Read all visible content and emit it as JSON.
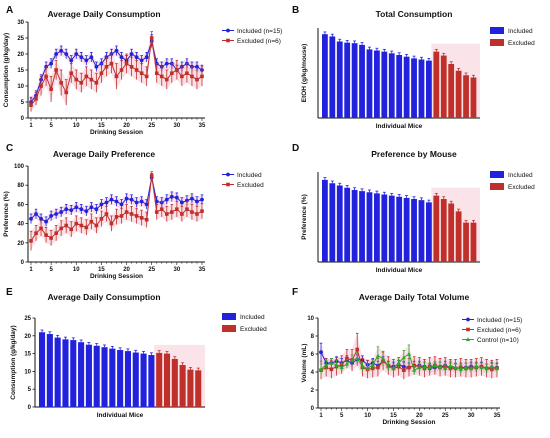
{
  "colors": {
    "included": "#2222dd",
    "excluded": "#c0302b",
    "control": "#2aa82a",
    "band": "#f6c9d6"
  },
  "chart_data": [
    {
      "panel": "A",
      "type": "line",
      "title": "Average Daily Consumption",
      "xlabel": "Drinking Session",
      "ylabel": "Consumption (g/kg/day)",
      "xlim": [
        1,
        35
      ],
      "ylim": [
        0,
        30
      ],
      "xticks": [
        1,
        5,
        10,
        15,
        20,
        25,
        30,
        35
      ],
      "yticks": [
        0,
        5,
        10,
        15,
        20,
        25,
        30
      ],
      "legend_position": "top-right",
      "series": [
        {
          "name": "Included (n=15)",
          "color": "included",
          "marker": "circle",
          "values": [
            5,
            7,
            12,
            16,
            17,
            20,
            21,
            20,
            18,
            20,
            19,
            18,
            19,
            16,
            17,
            19,
            20,
            21,
            19,
            18,
            20,
            19,
            18,
            19,
            24,
            17,
            16,
            17,
            17,
            15,
            16,
            17,
            16,
            16,
            15
          ],
          "err": [
            1.5,
            1.5,
            1.5,
            1.5,
            1.5,
            1.5,
            1.5,
            1.5,
            1.5,
            1.5,
            1.5,
            1.5,
            1.5,
            1.5,
            1.5,
            1.5,
            1.5,
            1.5,
            1.5,
            1.5,
            1.5,
            1.5,
            1.5,
            1.5,
            2,
            1.5,
            1.5,
            1.5,
            1.5,
            1.5,
            1.5,
            1.5,
            1.5,
            1.5,
            1.5
          ]
        },
        {
          "name": "Excluded (n=6)",
          "color": "excluded",
          "marker": "square",
          "values": [
            4,
            6,
            10,
            13,
            9,
            15,
            11,
            8,
            14,
            12,
            11,
            13,
            12,
            11,
            14,
            16,
            17,
            13,
            15,
            17,
            16,
            15,
            14,
            13,
            25,
            14,
            13,
            12,
            14,
            15,
            13,
            14,
            13,
            12,
            13
          ],
          "err": [
            2,
            2,
            3,
            3,
            4,
            3,
            4,
            4,
            3,
            3,
            3,
            3,
            3,
            3,
            3,
            3,
            3,
            4,
            3,
            3,
            3,
            3,
            3,
            3,
            2,
            3,
            3,
            3,
            3,
            3,
            3,
            3,
            3,
            3,
            3
          ]
        }
      ]
    },
    {
      "panel": "B",
      "type": "bar",
      "title": "Total Consumption",
      "xlabel": "Individual Mice",
      "ylabel": "EtOH (g/kg/mouse)",
      "ylim": [
        0,
        800
      ],
      "legend_position": "top-right",
      "series": [
        {
          "name": "Included",
          "color": "included",
          "values": [
            745,
            725,
            680,
            670,
            665,
            650,
            610,
            600,
            590,
            575,
            560,
            545,
            530,
            520,
            510
          ]
        },
        {
          "name": "Excluded",
          "color": "excluded",
          "values": [
            590,
            555,
            480,
            420,
            380,
            360
          ]
        }
      ]
    },
    {
      "panel": "C",
      "type": "line",
      "title": "Average Daily Preference",
      "xlabel": "Drinking Session",
      "ylabel": "Preference (%)",
      "xlim": [
        1,
        35
      ],
      "ylim": [
        0,
        100
      ],
      "xticks": [
        1,
        5,
        10,
        15,
        20,
        25,
        30,
        35
      ],
      "yticks": [
        0,
        20,
        40,
        60,
        80,
        100
      ],
      "legend_position": "top-right",
      "series": [
        {
          "name": "Included",
          "color": "included",
          "marker": "circle",
          "values": [
            45,
            50,
            45,
            42,
            48,
            50,
            52,
            55,
            54,
            57,
            55,
            53,
            57,
            55,
            60,
            62,
            65,
            63,
            60,
            66,
            65,
            62,
            63,
            60,
            88,
            63,
            62,
            65,
            68,
            67,
            62,
            64,
            66,
            63,
            65
          ],
          "err": [
            5,
            5,
            5,
            5,
            5,
            5,
            5,
            5,
            5,
            5,
            5,
            5,
            5,
            5,
            5,
            5,
            5,
            5,
            5,
            5,
            5,
            5,
            5,
            5,
            4,
            5,
            5,
            5,
            5,
            5,
            5,
            5,
            5,
            5,
            5
          ]
        },
        {
          "name": "Excluded",
          "color": "excluded",
          "marker": "square",
          "values": [
            22,
            30,
            35,
            28,
            25,
            30,
            35,
            38,
            34,
            40,
            38,
            36,
            42,
            38,
            45,
            50,
            40,
            47,
            48,
            52,
            50,
            48,
            46,
            44,
            90,
            52,
            55,
            50,
            52,
            55,
            50,
            55,
            52,
            50,
            53
          ],
          "err": [
            10,
            8,
            8,
            8,
            8,
            8,
            8,
            8,
            8,
            8,
            8,
            8,
            8,
            8,
            8,
            8,
            8,
            8,
            8,
            8,
            8,
            8,
            8,
            8,
            4,
            8,
            8,
            8,
            8,
            8,
            8,
            8,
            8,
            8,
            8
          ]
        }
      ]
    },
    {
      "panel": "D",
      "type": "bar",
      "title": "Preference by Mouse",
      "xlabel": "Individual Mice",
      "ylabel": "Preference  (%)",
      "ylim": [
        0,
        80
      ],
      "legend_position": "top-right",
      "series": [
        {
          "name": "Included",
          "color": "included",
          "values": [
            73,
            70,
            68,
            66,
            64,
            63,
            62,
            61,
            60,
            59,
            58,
            57,
            56,
            55,
            53
          ]
        },
        {
          "name": "Excluded",
          "color": "excluded",
          "values": [
            59,
            56,
            52,
            45,
            35,
            35
          ]
        }
      ]
    },
    {
      "panel": "E",
      "type": "bar",
      "title": "Average Daily Consumption",
      "xlabel": "Individual Mice",
      "ylabel": "Consumption (g/kg/day)",
      "ylim": [
        0,
        25
      ],
      "yticks": [
        0,
        5,
        10,
        15,
        20,
        25
      ],
      "legend_position": "top-right",
      "series": [
        {
          "name": "Included",
          "color": "included",
          "values": [
            21,
            20.5,
            19.5,
            19,
            18.8,
            18.2,
            17.5,
            17.2,
            16.8,
            16.4,
            16,
            15.7,
            15.3,
            15,
            14.6
          ]
        },
        {
          "name": "Excluded",
          "color": "excluded",
          "values": [
            15.2,
            15,
            13.5,
            11.8,
            10.5,
            10.3
          ]
        }
      ]
    },
    {
      "panel": "F",
      "type": "line",
      "title": "Average Daily Total Volume",
      "xlabel": "Drinking Session",
      "ylabel": "Volume (mL)",
      "xlim": [
        1,
        35
      ],
      "ylim": [
        0,
        10
      ],
      "xticks": [
        1,
        5,
        10,
        15,
        20,
        25,
        30,
        35
      ],
      "yticks": [
        0,
        2,
        4,
        6,
        8,
        10
      ],
      "legend_position": "top-right",
      "series": [
        {
          "name": "Included (n=15)",
          "color": "included",
          "marker": "circle",
          "values": [
            6.2,
            5,
            5,
            5.2,
            5,
            5.3,
            5,
            5.4,
            5.3,
            4.8,
            5,
            4.7,
            5.2,
            4.7,
            4.6,
            4.8,
            4.6,
            4.5,
            4.7,
            4.7,
            4.6,
            4.4,
            4.5,
            4.6,
            4.7,
            4.5,
            4.4,
            4.5,
            4.5,
            4.6,
            4.5,
            4.6,
            4.4,
            4.5,
            4.5
          ],
          "err": [
            1,
            0.5,
            0.5,
            0.5,
            0.5,
            0.5,
            0.5,
            0.5,
            0.5,
            0.5,
            0.5,
            0.5,
            0.5,
            0.5,
            0.5,
            0.5,
            0.5,
            0.5,
            0.5,
            0.5,
            0.5,
            0.5,
            0.5,
            0.5,
            0.5,
            0.5,
            0.5,
            0.5,
            0.5,
            0.5,
            0.5,
            0.5,
            0.5,
            0.5,
            0.5
          ]
        },
        {
          "name": "Excluded (n=6)",
          "color": "excluded",
          "marker": "square",
          "values": [
            4.2,
            4.5,
            4.3,
            4.6,
            4.8,
            5.5,
            5.3,
            6.5,
            4.5,
            4.3,
            4.4,
            4.5,
            5.2,
            4.7,
            4.4,
            4.6,
            4.2,
            4.5,
            4.7,
            4.6,
            4.4,
            4.6,
            4.7,
            4.5,
            4.6,
            4.4,
            4.4,
            4.5,
            4.4,
            4.4,
            4.5,
            4.6,
            4.4,
            4.3,
            4.4
          ],
          "err": [
            1,
            1,
            1,
            1,
            1,
            1,
            1.2,
            1.8,
            1,
            1,
            1,
            1,
            1,
            1,
            1,
            1,
            1,
            1,
            1,
            1,
            1,
            1,
            1,
            1,
            1,
            1,
            1,
            1,
            1,
            1,
            1,
            1,
            1,
            1,
            1
          ]
        },
        {
          "name": "Control (n=10)",
          "color": "control",
          "marker": "triangle",
          "values": [
            4.3,
            4.8,
            5,
            4.8,
            4.5,
            4.9,
            5.3,
            5.5,
            4.6,
            4.4,
            4.8,
            5.8,
            5.5,
            4.6,
            4.4,
            5,
            5.6,
            6,
            4.2,
            4.5,
            4.6,
            4.5,
            4.7,
            4.6,
            4.4,
            4.7,
            4.5,
            4.3,
            4.5,
            4.4,
            4.6,
            4.5,
            4.4,
            4.6,
            4.4
          ],
          "err": [
            0.6,
            0.5,
            0.5,
            0.5,
            0.5,
            0.5,
            0.6,
            0.6,
            0.5,
            0.5,
            0.6,
            1,
            0.8,
            0.5,
            0.5,
            0.6,
            0.8,
            1,
            0.5,
            0.5,
            0.5,
            0.5,
            0.5,
            0.5,
            0.5,
            0.5,
            0.5,
            0.5,
            0.5,
            0.5,
            0.5,
            0.5,
            0.5,
            0.5,
            0.5
          ]
        }
      ]
    }
  ]
}
